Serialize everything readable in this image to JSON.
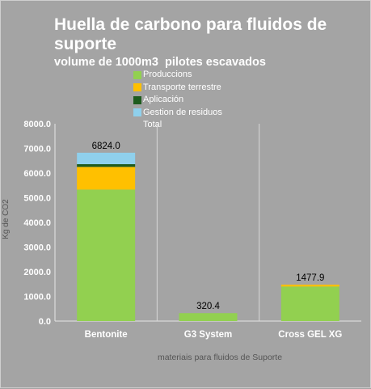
{
  "chart_data": {
    "type": "bar",
    "stacked": true,
    "title": "Huella de carbono para fluidos de suporte",
    "subtitle": "volume de 1000m3  pilotes escavados",
    "xlabel": "materiais para fluidos de Suporte",
    "ylabel": "Kg de  CO2",
    "ylim": [
      0,
      8000
    ],
    "yticks": [
      "0.0",
      "1000.0",
      "2000.0",
      "3000.0",
      "4000.0",
      "5000.0",
      "6000.0",
      "7000.0",
      "8000.0"
    ],
    "categories": [
      "Bentonite",
      "G3 System",
      "Cross GEL XG"
    ],
    "series": [
      {
        "name": "Produccions",
        "color": "#92d050",
        "values": [
          5330,
          320.4,
          1400
        ]
      },
      {
        "name": "Transporte terrestre",
        "color": "#ffc000",
        "values": [
          920,
          0,
          77.9
        ]
      },
      {
        "name": "Aplicación",
        "color": "#1e5c1e",
        "values": [
          110,
          0,
          0
        ]
      },
      {
        "name": "Gestion de residuos",
        "color": "#8fd0ec",
        "values": [
          464,
          0,
          0
        ]
      }
    ],
    "totals_label": "Total",
    "totals": [
      "6824.0",
      "320.4",
      "1477.9"
    ],
    "legend_position": "top",
    "grid": "vertical separators"
  }
}
